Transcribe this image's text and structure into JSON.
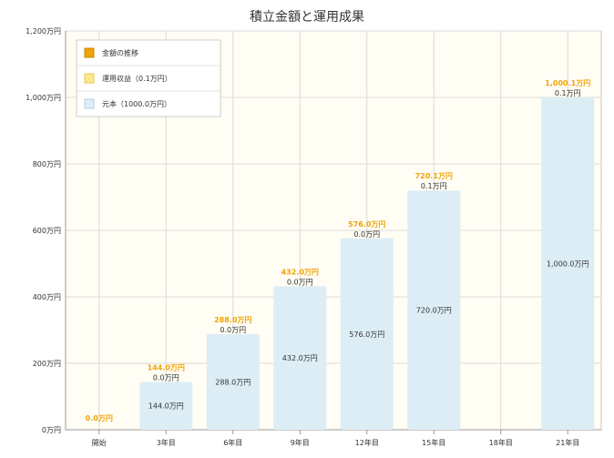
{
  "chart_data": {
    "type": "bar",
    "title": "積立金額と運用成果",
    "categories": [
      "開始",
      "3年目",
      "6年目",
      "9年目",
      "12年目",
      "15年目",
      "18年目",
      "21年目"
    ],
    "series": [
      {
        "name": "金額の推移",
        "values": [
          0,
          144.0,
          288.0,
          432.0,
          576.0,
          720.1,
          null,
          1000.1
        ],
        "labels": [
          "0.0万円",
          "144.0万円",
          "288.0万円",
          "432.0万円",
          "576.0万円",
          "720.1万円",
          "",
          "1,000.1万円"
        ]
      },
      {
        "name": "運用収益（0.1万円）",
        "values": [
          null,
          0,
          0,
          0,
          0,
          0.1,
          null,
          0.1
        ],
        "labels": [
          "",
          "0.0万円",
          "0.0万円",
          "0.0万円",
          "0.0万円",
          "0.1万円",
          "",
          "0.1万円"
        ]
      },
      {
        "name": "元本（1000.0万円）",
        "values": [
          0,
          144.0,
          288.0,
          432.0,
          576.0,
          720.0,
          null,
          1000.0
        ],
        "labels": [
          "",
          "144.0万円",
          "288.0万円",
          "432.0万円",
          "576.0万円",
          "720.0万円",
          "",
          "1,000.0万円"
        ]
      }
    ],
    "ylim": [
      0,
      1200
    ],
    "yticks": [
      0,
      200,
      400,
      600,
      800,
      1000,
      1200
    ],
    "ytick_labels": [
      "0万円",
      "200万円",
      "400万円",
      "600万円",
      "800万円",
      "1,000万円",
      "1,200万円"
    ],
    "grid": true,
    "legend_position": "top-left",
    "colors": {
      "total": "#f0a30a",
      "profit": "#ffe88c",
      "principal": "#ddedf5",
      "plot_bg": "#fffdf4",
      "grid": "#dcdcd4",
      "axis": "#999999",
      "text": "#333333",
      "total_label": "#f0a30a"
    }
  }
}
